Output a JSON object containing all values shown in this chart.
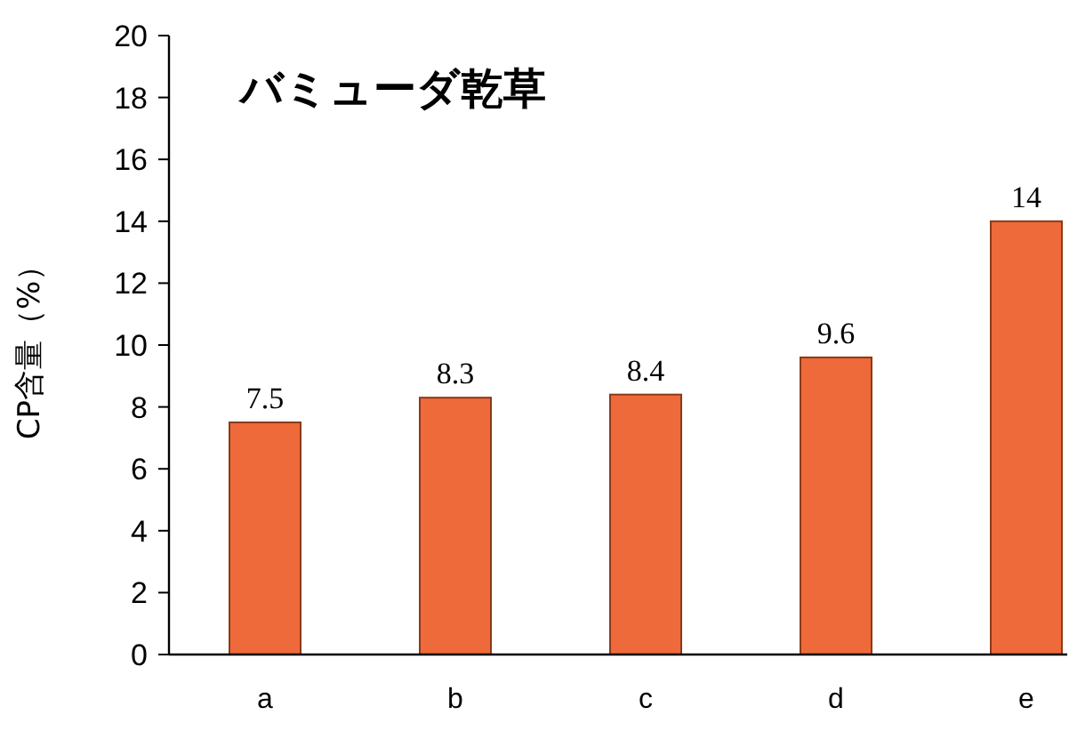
{
  "chart_data": {
    "type": "bar",
    "title": "バミューダ乾草",
    "ylabel": "CP含量（%）",
    "categories": [
      "a",
      "b",
      "c",
      "d",
      "e"
    ],
    "values": [
      7.5,
      8.3,
      8.4,
      9.6,
      14
    ],
    "color": "#ee6a3a",
    "ylim": [
      0,
      20
    ],
    "yticks": [
      0,
      2,
      4,
      6,
      8,
      10,
      12,
      14,
      16,
      18,
      20
    ],
    "data_labels": true
  }
}
